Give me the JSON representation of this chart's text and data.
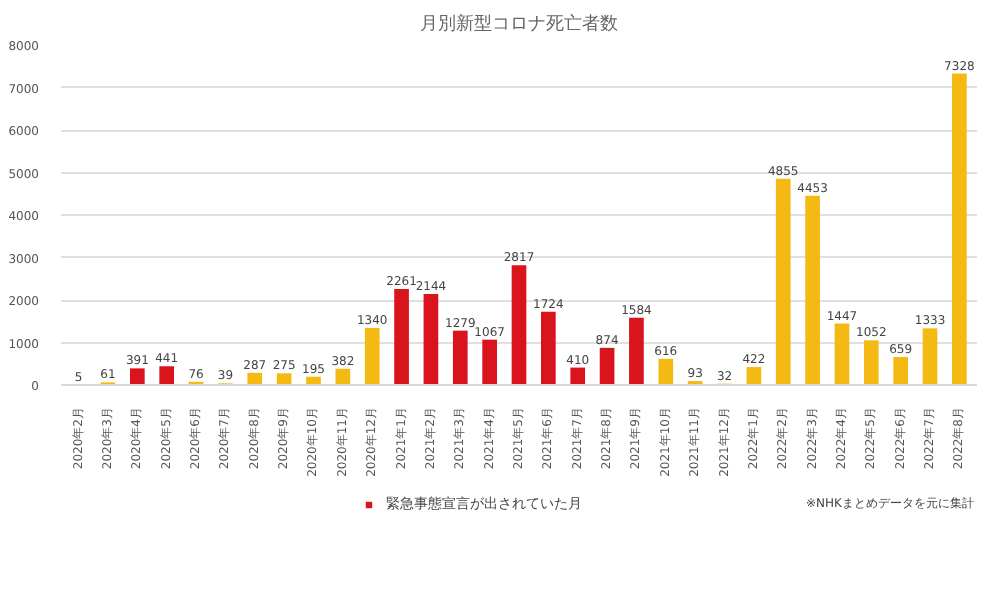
{
  "chart_data": {
    "type": "bar",
    "title": "月別新型コロナ死亡者数",
    "categories": [
      "2020年2月",
      "2020年3月",
      "2020年4月",
      "2020年5月",
      "2020年6月",
      "2020年7月",
      "2020年8月",
      "2020年9月",
      "2020年10月",
      "2020年11月",
      "2020年12月",
      "2021年1月",
      "2021年2月",
      "2021年3月",
      "2021年4月",
      "2021年5月",
      "2021年6月",
      "2021年7月",
      "2021年8月",
      "2021年9月",
      "2021年10月",
      "2021年11月",
      "2021年12月",
      "2022年1月",
      "2022年2月",
      "2022年3月",
      "2022年4月",
      "2022年5月",
      "2022年6月",
      "2022年7月",
      "2022年8月"
    ],
    "series": [
      {
        "name": "緊急事態宣言が出されていた月",
        "color": "#d9141c",
        "values": [
          null,
          null,
          391,
          441,
          null,
          null,
          null,
          null,
          null,
          null,
          null,
          2261,
          2144,
          1279,
          1067,
          2817,
          1724,
          410,
          874,
          1584,
          null,
          null,
          null,
          null,
          null,
          null,
          null,
          null,
          null,
          null,
          null
        ]
      },
      {
        "color": "#f5b914",
        "values": [
          5,
          61,
          null,
          null,
          76,
          39,
          287,
          275,
          195,
          382,
          1340,
          null,
          null,
          null,
          null,
          null,
          null,
          null,
          null,
          null,
          616,
          93,
          32,
          422,
          4855,
          4453,
          1447,
          1052,
          659,
          1333,
          7328
        ]
      }
    ],
    "ylim": [
      0,
      8000
    ],
    "yticks": [
      0,
      1000,
      2000,
      3000,
      4000,
      5000,
      6000,
      7000,
      8000
    ],
    "grid": "y",
    "legend": "bottom",
    "data_labels": true,
    "annotations": [
      "※NHKまとめデータを元に集計"
    ]
  }
}
